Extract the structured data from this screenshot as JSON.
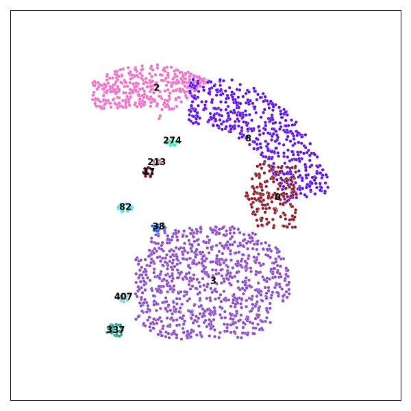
{
  "chart_data": {
    "type": "scatter",
    "title": "",
    "xlabel": "",
    "ylabel": "",
    "xlim": [
      0,
      100
    ],
    "ylim": [
      0,
      100
    ],
    "grid": false,
    "legend": "none",
    "axes_ticks": false,
    "clusters": [
      {
        "label": "2",
        "color": "#f06bc8",
        "center": [
          37.5,
          80.0
        ],
        "count": 420
      },
      {
        "label": "8",
        "color": "#5a0bf0",
        "center": [
          61.0,
          67.0
        ],
        "count": 520
      },
      {
        "label": "0",
        "color": "#8b1a25",
        "center": [
          68.5,
          52.0
        ],
        "count": 180
      },
      {
        "label": "3",
        "color": "#8a4ac8",
        "center": [
          52.0,
          30.5
        ],
        "count": 900
      },
      {
        "label": "274",
        "color": "#3be8c0",
        "center": [
          41.5,
          66.5
        ],
        "count": 14
      },
      {
        "label": "213",
        "color": "#c0808a",
        "center": [
          37.5,
          61.0
        ],
        "count": 8
      },
      {
        "label": "17",
        "color": "#5a0b20",
        "center": [
          35.5,
          58.5
        ],
        "count": 16
      },
      {
        "label": "82",
        "color": "#4ee6ea",
        "center": [
          29.5,
          49.5
        ],
        "count": 20
      },
      {
        "label": "38",
        "color": "#0a5ce0",
        "center": [
          38.0,
          44.5
        ],
        "count": 16
      },
      {
        "label": "407",
        "color": "#80d0d0",
        "center": [
          29.0,
          26.5
        ],
        "count": 20
      },
      {
        "label": "337",
        "color": "#20a090",
        "center": [
          27.0,
          18.0
        ],
        "count": 30
      }
    ]
  }
}
